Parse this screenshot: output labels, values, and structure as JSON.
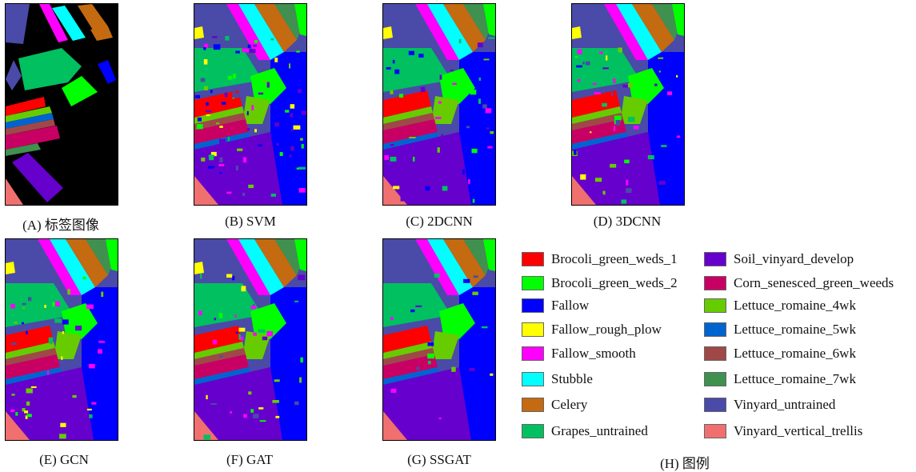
{
  "panels": [
    {
      "id": "A",
      "caption": "(A) 标签图像",
      "kind": "label"
    },
    {
      "id": "B",
      "caption": "(B) SVM",
      "kind": "svm"
    },
    {
      "id": "C",
      "caption": "(C) 2DCNN",
      "kind": "cnn2d"
    },
    {
      "id": "D",
      "caption": "(D) 3DCNN",
      "kind": "cnn3d"
    },
    {
      "id": "E",
      "caption": "(E) GCN",
      "kind": "gcn"
    },
    {
      "id": "F",
      "caption": "(F) GAT",
      "kind": "gat"
    },
    {
      "id": "G",
      "caption": "(G) SSGAT",
      "kind": "ssgat"
    }
  ],
  "legend": {
    "caption": "(H) 图例",
    "items": [
      {
        "label": "Brocoli_green_weds_1",
        "color": "#ff0000"
      },
      {
        "label": "Brocoli_green_weds_2",
        "color": "#00ff00"
      },
      {
        "label": "Fallow",
        "color": "#0000ff"
      },
      {
        "label": "Fallow_rough_plow",
        "color": "#ffff00"
      },
      {
        "label": "Fallow_smooth",
        "color": "#ff00ff"
      },
      {
        "label": "Stubble",
        "color": "#00ffff"
      },
      {
        "label": "Celery",
        "color": "#c46a10"
      },
      {
        "label": "Grapes_untrained",
        "color": "#00c060"
      },
      {
        "label": "Soil_vinyard_develop",
        "color": "#6600cc"
      },
      {
        "label": "Corn_senesced_green_weeds",
        "color": "#c80064"
      },
      {
        "label": "Lettuce_romaine_4wk",
        "color": "#66cc00"
      },
      {
        "label": "Lettuce_romaine_5wk",
        "color": "#0064d0"
      },
      {
        "label": "Lettuce_romaine_6wk",
        "color": "#a04848"
      },
      {
        "label": "Lettuce_romaine_7wk",
        "color": "#409050"
      },
      {
        "label": "Vinyard_untrained",
        "color": "#4a4aa8"
      },
      {
        "label": "Vinyard_vertical_trellis",
        "color": "#f07070"
      }
    ]
  }
}
